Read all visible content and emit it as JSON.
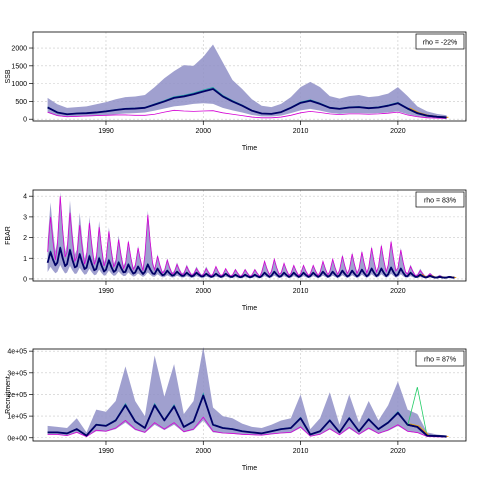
{
  "chart_data": [
    {
      "type": "line",
      "name": "ssb",
      "ylabel": "SSB",
      "xlabel": "Time",
      "xlim": [
        1982.5,
        2027
      ],
      "ylim": [
        -50,
        2450
      ],
      "xticks": [
        1990,
        2000,
        2010,
        2020
      ],
      "yticks": [
        0,
        500,
        1000,
        1500,
        2000
      ],
      "ytick_labels": [
        "0",
        "500",
        "1000",
        "1500",
        "2000"
      ],
      "grid": true,
      "legend": {
        "text": "rho = -22%",
        "placement": "top-right"
      },
      "band_color": "#8f8fc7",
      "line_color": "#000066",
      "x": [
        1984,
        1985,
        1986,
        1987,
        1988,
        1989,
        1990,
        1991,
        1992,
        1993,
        1994,
        1995,
        1996,
        1997,
        1998,
        1999,
        2000,
        2001,
        2002,
        2003,
        2004,
        2005,
        2006,
        2007,
        2008,
        2009,
        2010,
        2011,
        2012,
        2013,
        2014,
        2015,
        2016,
        2017,
        2018,
        2019,
        2020,
        2021,
        2022,
        2023,
        2024,
        2025
      ],
      "median": [
        330,
        190,
        140,
        160,
        170,
        190,
        220,
        260,
        290,
        300,
        320,
        410,
        500,
        600,
        640,
        700,
        780,
        850,
        640,
        500,
        380,
        240,
        160,
        150,
        200,
        320,
        460,
        520,
        430,
        320,
        290,
        330,
        340,
        310,
        330,
        380,
        450,
        300,
        170,
        100,
        70,
        50
      ],
      "upper": [
        600,
        420,
        320,
        340,
        360,
        420,
        480,
        560,
        620,
        640,
        680,
        900,
        1150,
        1350,
        1520,
        1500,
        1750,
        2100,
        1600,
        1100,
        850,
        560,
        380,
        340,
        430,
        620,
        900,
        1050,
        900,
        650,
        580,
        650,
        680,
        620,
        650,
        720,
        900,
        650,
        360,
        220,
        150,
        110
      ],
      "lower": [
        180,
        90,
        60,
        70,
        80,
        90,
        110,
        140,
        160,
        170,
        190,
        240,
        300,
        360,
        390,
        430,
        450,
        430,
        320,
        250,
        190,
        120,
        80,
        75,
        100,
        170,
        250,
        290,
        240,
        180,
        150,
        170,
        170,
        160,
        170,
        190,
        220,
        140,
        80,
        45,
        30,
        20
      ],
      "magenta": [
        200,
        100,
        70,
        80,
        90,
        100,
        110,
        120,
        120,
        110,
        110,
        140,
        200,
        250,
        230,
        220,
        230,
        240,
        180,
        140,
        100,
        60,
        40,
        40,
        60,
        110,
        180,
        220,
        190,
        150,
        130,
        150,
        150,
        140,
        150,
        170,
        200,
        120,
        70,
        40,
        30,
        20
      ]
    },
    {
      "type": "line",
      "name": "fbar",
      "ylabel": "FBAR",
      "xlabel": "Time",
      "xlim": [
        1982.5,
        2027
      ],
      "ylim": [
        -0.1,
        4.3
      ],
      "xticks": [
        1990,
        2000,
        2010,
        2020
      ],
      "yticks": [
        0,
        1,
        2,
        3,
        4
      ],
      "ytick_labels": [
        "0",
        "1",
        "2",
        "3",
        "4"
      ],
      "grid": true,
      "legend": {
        "text": "rho = 83%",
        "placement": "top-right"
      },
      "band_color": "#8f8fc7",
      "line_color": "#000066",
      "seasonal_years": [
        1984,
        1985,
        1986,
        1987,
        1988,
        1989,
        1990,
        1991,
        1992,
        1993,
        1994,
        1995,
        1996,
        1997,
        1998,
        1999,
        2000,
        2001,
        2002,
        2003,
        2004,
        2005,
        2006,
        2007,
        2008,
        2009,
        2010,
        2011,
        2012,
        2013,
        2014,
        2015,
        2016,
        2017,
        2018,
        2019,
        2020,
        2021,
        2022,
        2023,
        2024,
        2025
      ],
      "peak_median": [
        1.3,
        1.5,
        1.4,
        1.2,
        1.1,
        1.0,
        0.9,
        0.8,
        0.7,
        0.6,
        0.7,
        0.5,
        0.4,
        0.35,
        0.3,
        0.3,
        0.25,
        0.25,
        0.25,
        0.2,
        0.2,
        0.2,
        0.3,
        0.35,
        0.3,
        0.3,
        0.3,
        0.3,
        0.35,
        0.35,
        0.4,
        0.4,
        0.45,
        0.5,
        0.5,
        0.55,
        0.5,
        0.3,
        0.2,
        0.15,
        0.1,
        0.1
      ],
      "peak_upper": [
        3.7,
        4.2,
        3.8,
        3.2,
        3.0,
        2.8,
        2.5,
        2.1,
        1.9,
        1.6,
        3.3,
        1.2,
        1.0,
        0.8,
        0.7,
        0.6,
        0.6,
        0.6,
        0.5,
        0.5,
        0.5,
        0.5,
        0.9,
        1.0,
        0.8,
        0.7,
        0.7,
        0.7,
        0.9,
        1.0,
        1.2,
        1.3,
        1.4,
        1.6,
        1.7,
        1.9,
        1.5,
        0.7,
        0.5,
        0.3,
        0.2,
        0.15
      ],
      "peak_magenta": [
        3.0,
        4.0,
        3.2,
        2.6,
        2.7,
        2.5,
        2.3,
        1.9,
        1.8,
        1.5,
        3.1,
        1.1,
        0.9,
        0.7,
        0.6,
        0.5,
        0.5,
        0.6,
        0.5,
        0.45,
        0.45,
        0.45,
        0.85,
        0.95,
        0.75,
        0.65,
        0.65,
        0.65,
        0.85,
        0.95,
        1.1,
        1.2,
        1.3,
        1.5,
        1.6,
        1.8,
        1.4,
        0.6,
        0.4,
        0.25,
        0.15,
        0.1
      ],
      "trough_median": [
        0.5,
        0.4,
        0.35,
        0.3,
        0.25,
        0.2,
        0.2,
        0.2,
        0.15,
        0.15,
        0.15,
        0.1,
        0.1,
        0.1,
        0.08,
        0.08,
        0.06,
        0.06,
        0.06,
        0.05,
        0.05,
        0.05,
        0.05,
        0.05,
        0.05,
        0.05,
        0.05,
        0.05,
        0.05,
        0.05,
        0.05,
        0.05,
        0.05,
        0.05,
        0.05,
        0.05,
        0.05,
        0.05,
        0.05,
        0.05,
        0.05,
        0.05
      ]
    },
    {
      "type": "line",
      "name": "recruitment",
      "ylabel": "Recruitment",
      "xlabel": "Time",
      "xlim": [
        1982.5,
        2027
      ],
      "ylim": [
        -15000,
        410000
      ],
      "xticks": [
        1990,
        2000,
        2010,
        2020
      ],
      "yticks": [
        0,
        100000,
        200000,
        300000,
        400000
      ],
      "ytick_labels": [
        "0e+00",
        "1e+05",
        "2e+05",
        "3e+05",
        "4e+05"
      ],
      "grid": true,
      "legend": {
        "text": "rho = 87%",
        "placement": "top-right"
      },
      "band_color": "#8f8fc7",
      "line_color": "#000066",
      "x": [
        1984,
        1985,
        1986,
        1987,
        1988,
        1989,
        1990,
        1991,
        1992,
        1993,
        1994,
        1995,
        1996,
        1997,
        1998,
        1999,
        2000,
        2001,
        2002,
        2003,
        2004,
        2005,
        2006,
        2007,
        2008,
        2009,
        2010,
        2011,
        2012,
        2013,
        2014,
        2015,
        2016,
        2017,
        2018,
        2019,
        2020,
        2021,
        2022,
        2023,
        2024,
        2025
      ],
      "median": [
        25000,
        25000,
        20000,
        40000,
        10000,
        60000,
        55000,
        80000,
        150000,
        75000,
        45000,
        150000,
        80000,
        145000,
        50000,
        75000,
        195000,
        60000,
        45000,
        40000,
        30000,
        25000,
        20000,
        30000,
        40000,
        45000,
        90000,
        15000,
        30000,
        80000,
        25000,
        90000,
        30000,
        85000,
        40000,
        70000,
        115000,
        60000,
        50000,
        10000,
        8000,
        6000
      ],
      "upper": [
        55000,
        50000,
        45000,
        90000,
        25000,
        130000,
        120000,
        170000,
        330000,
        170000,
        100000,
        380000,
        190000,
        340000,
        110000,
        170000,
        420000,
        140000,
        100000,
        90000,
        65000,
        50000,
        45000,
        60000,
        80000,
        90000,
        200000,
        40000,
        90000,
        210000,
        60000,
        200000,
        70000,
        170000,
        80000,
        150000,
        260000,
        130000,
        110000,
        25000,
        15000,
        10000
      ],
      "lower": [
        15000,
        15000,
        10000,
        25000,
        5000,
        30000,
        28000,
        40000,
        70000,
        35000,
        22000,
        60000,
        35000,
        60000,
        25000,
        35000,
        80000,
        25000,
        20000,
        18000,
        14000,
        12000,
        10000,
        15000,
        20000,
        22000,
        45000,
        6000,
        14000,
        38000,
        12000,
        42000,
        14000,
        40000,
        18000,
        32000,
        55000,
        28000,
        22000,
        5000,
        4000,
        3000
      ],
      "magenta": [
        15000,
        15000,
        10000,
        25000,
        5000,
        35000,
        30000,
        45000,
        80000,
        40000,
        25000,
        70000,
        40000,
        70000,
        28000,
        40000,
        95000,
        30000,
        22000,
        20000,
        16000,
        14000,
        12000,
        18000,
        22000,
        25000,
        50000,
        7000,
        16000,
        42000,
        14000,
        48000,
        16000,
        45000,
        20000,
        36000,
        60000,
        30000,
        24000,
        6000,
        4000,
        3000
      ]
    }
  ]
}
